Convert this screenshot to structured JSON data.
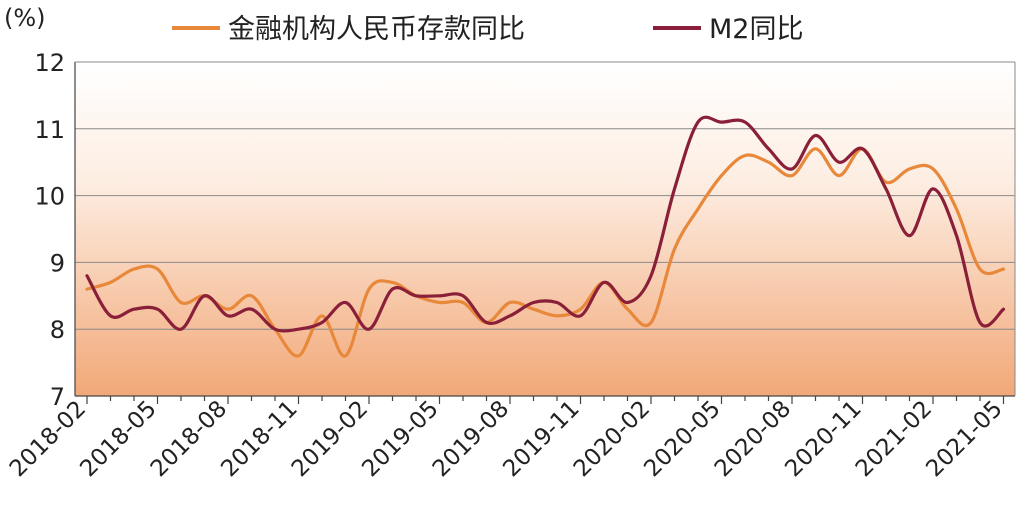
{
  "chart_data": {
    "type": "line",
    "unit_label": "(%)",
    "title": "",
    "xlabel": "",
    "ylabel": "",
    "ylim": [
      7,
      12
    ],
    "yticks": [
      7,
      8,
      9,
      10,
      11,
      12
    ],
    "grid": true,
    "legend_position": "top",
    "x_tick_labels": [
      "2018-02",
      "2018-05",
      "2018-08",
      "2018-11",
      "2019-02",
      "2019-05",
      "2019-08",
      "2019-11",
      "2020-02",
      "2020-05",
      "2020-08",
      "2020-11",
      "2021-02",
      "2021-05"
    ],
    "x": [
      "2018-02",
      "2018-03",
      "2018-04",
      "2018-05",
      "2018-06",
      "2018-07",
      "2018-08",
      "2018-09",
      "2018-10",
      "2018-11",
      "2018-12",
      "2019-01",
      "2019-02",
      "2019-03",
      "2019-04",
      "2019-05",
      "2019-06",
      "2019-07",
      "2019-08",
      "2019-09",
      "2019-10",
      "2019-11",
      "2019-12",
      "2020-01",
      "2020-02",
      "2020-03",
      "2020-04",
      "2020-05",
      "2020-06",
      "2020-07",
      "2020-08",
      "2020-09",
      "2020-10",
      "2020-11",
      "2020-12",
      "2021-01",
      "2021-02",
      "2021-03",
      "2021-04",
      "2021-05"
    ],
    "series": [
      {
        "name": "金融机构人民币存款同比",
        "color": "#e8883a",
        "values": [
          8.6,
          8.7,
          8.9,
          8.9,
          8.4,
          8.5,
          8.3,
          8.5,
          8.0,
          7.6,
          8.2,
          7.6,
          8.6,
          8.7,
          8.5,
          8.4,
          8.4,
          8.1,
          8.4,
          8.3,
          8.2,
          8.3,
          8.7,
          8.3,
          8.1,
          9.2,
          9.8,
          10.3,
          10.6,
          10.5,
          10.3,
          10.7,
          10.3,
          10.7,
          10.2,
          10.4,
          10.4,
          9.8,
          8.9,
          8.9
        ]
      },
      {
        "name": "M2同比",
        "color": "#8a1f3a",
        "values": [
          8.8,
          8.2,
          8.3,
          8.3,
          8.0,
          8.5,
          8.2,
          8.3,
          8.0,
          8.0,
          8.1,
          8.4,
          8.0,
          8.6,
          8.5,
          8.5,
          8.5,
          8.1,
          8.2,
          8.4,
          8.4,
          8.2,
          8.7,
          8.4,
          8.8,
          10.1,
          11.1,
          11.1,
          11.1,
          10.7,
          10.4,
          10.9,
          10.5,
          10.7,
          10.1,
          9.4,
          10.1,
          9.4,
          8.1,
          8.3
        ]
      }
    ]
  }
}
